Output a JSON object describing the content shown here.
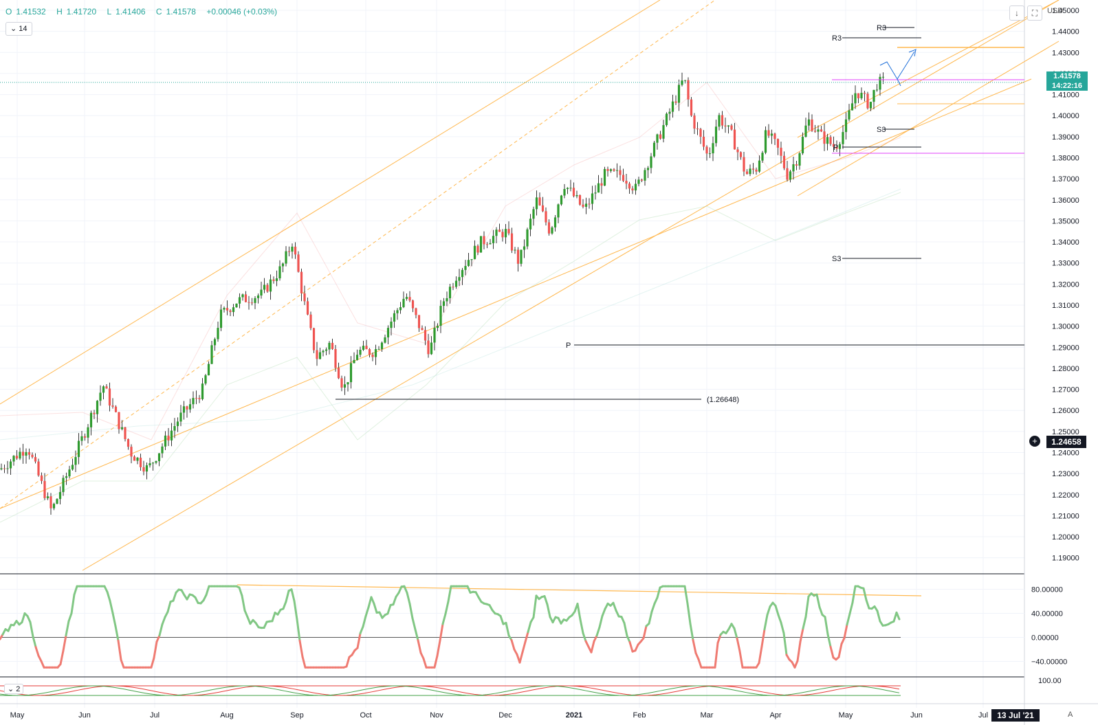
{
  "ohlc": {
    "open_label": "O",
    "open": "1.41532",
    "high_label": "H",
    "high": "1.41720",
    "low_label": "L",
    "low": "1.41406",
    "close_label": "C",
    "close": "1.41578",
    "change": "+0.00046 (+0.03%)"
  },
  "interval": "14",
  "currency": "USD",
  "last_price": "1.41578",
  "countdown": "14:22:16",
  "cursor_price": "1.24658",
  "cursor_date": "13 Jul '21",
  "auto_button": "A",
  "osc2_label": "2",
  "price_axis": [
    "1.45000",
    "1.44000",
    "1.43000",
    "1.42000",
    "1.41000",
    "1.40000",
    "1.39000",
    "1.38000",
    "1.37000",
    "1.36000",
    "1.35000",
    "1.34000",
    "1.33000",
    "1.32000",
    "1.31000",
    "1.30000",
    "1.29000",
    "1.28000",
    "1.27000",
    "1.26000",
    "1.25000",
    "1.24000",
    "1.23000",
    "1.22000",
    "1.21000",
    "1.20000",
    "1.19000"
  ],
  "osc_axis": [
    "80.00000",
    "40.00000",
    "0.00000",
    "−40.00000"
  ],
  "osc2_axis": [
    "100.00"
  ],
  "time_axis": [
    "May",
    "Jun",
    "Jul",
    "Aug",
    "Sep",
    "Oct",
    "Nov",
    "Dec",
    "2021",
    "Feb",
    "Mar",
    "Apr",
    "May",
    "Jun",
    "Jul"
  ],
  "pivot_labels": {
    "r3_upper": "R3",
    "r3_lower": "R3",
    "s3_upper": "S3",
    "s3_lower": "S3",
    "p_upper": "P",
    "p_lower": "P",
    "level_label": "(1.26648)"
  },
  "colors": {
    "up": "#26a69a",
    "up_candle": "#2e9a2e",
    "down": "#ef5350",
    "channel": "#ffb74d",
    "tag_bg": "#26a69a",
    "cursor_bg": "#131722",
    "osc_up": "#81c784",
    "osc_down": "#ef7b72",
    "magenta": "#e040fb"
  },
  "icons": {
    "download": "download-icon",
    "fullscreen": "fullscreen-icon"
  },
  "chart_data": {
    "type": "candlestick",
    "symbol_quote": "USD",
    "ylim": [
      1.185,
      1.45
    ],
    "last": 1.41578,
    "levels": [
      {
        "label": "R3",
        "value": 1.4385
      },
      {
        "label": "R3",
        "value": 1.4335
      },
      {
        "label": "S3",
        "value": 1.3917
      },
      {
        "label": "P",
        "value": 1.3835
      },
      {
        "label": "S3",
        "value": 1.3315
      },
      {
        "label": "P",
        "value": 1.2922
      },
      {
        "label": "(1.26648)",
        "value": 1.26648
      }
    ],
    "oscillator_ylim": [
      -60,
      100
    ]
  }
}
